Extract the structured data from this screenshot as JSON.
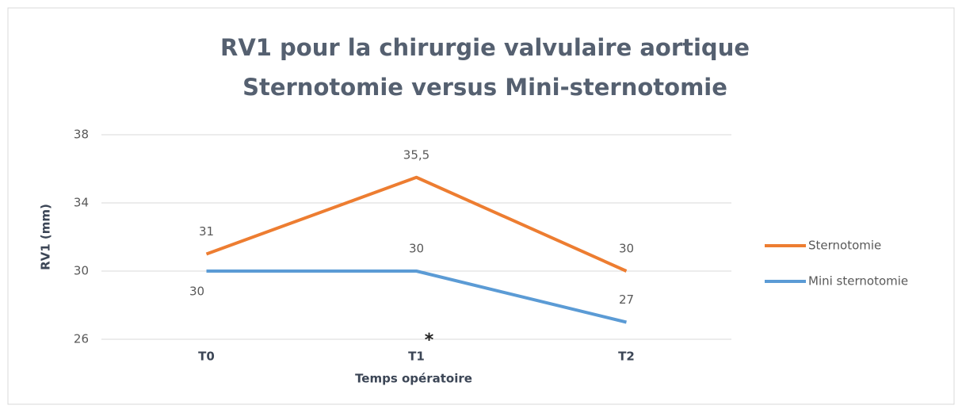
{
  "chart_data": {
    "type": "line",
    "title": "RV1 pour la chirurgie valvulaire aortique",
    "subtitle": "Sternotomie versus Mini-sternotomie",
    "y_label": "RV1 (mm)",
    "x_label": "Temps opératoire",
    "categories": [
      "T0",
      "T1",
      "T2"
    ],
    "series": [
      {
        "name": "Sternotomie",
        "color": "#ed7d31",
        "values": [
          31,
          35.5,
          30
        ],
        "value_labels": [
          "31",
          "35,5",
          "30"
        ]
      },
      {
        "name": "Mini sternotomie",
        "color": "#5b9bd5",
        "values": [
          30,
          30,
          27
        ],
        "value_labels": [
          "30",
          "30",
          "27"
        ]
      }
    ],
    "ylim": [
      26,
      38
    ],
    "yticks": [
      26,
      30,
      34,
      38
    ],
    "grid": true,
    "annotation": "*",
    "legend": "right"
  }
}
